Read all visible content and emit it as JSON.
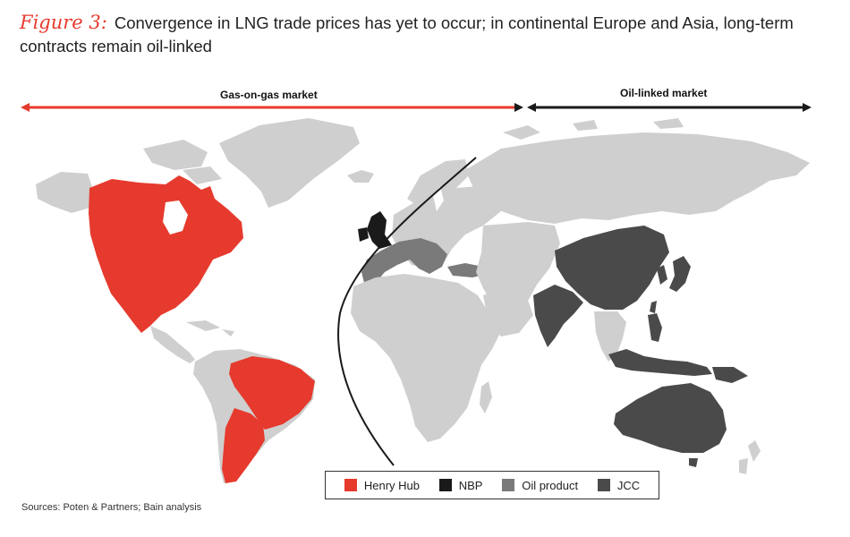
{
  "figure": {
    "label": "Figure 3:",
    "title": "Convergence in LNG trade prices has yet to occur; in continental Europe and Asia, long-term contracts remain oil-linked"
  },
  "bands": {
    "gas_on_gas": "Gas-on-gas market",
    "oil_linked": "Oil-linked market"
  },
  "colors": {
    "henry_hub": "#e63a2e",
    "nbp": "#1a1a1a",
    "oil_product": "#7a7a7a",
    "jcc": "#4a4a4a",
    "other_land": "#cfcfcf"
  },
  "legend": [
    {
      "label": "Henry Hub",
      "color": "#e63a2e"
    },
    {
      "label": "NBP",
      "color": "#1a1a1a"
    },
    {
      "label": "Oil product",
      "color": "#7a7a7a"
    },
    {
      "label": "JCC",
      "color": "#4a4a4a"
    }
  ],
  "source": "Sources: Poten & Partners; Bain analysis"
}
